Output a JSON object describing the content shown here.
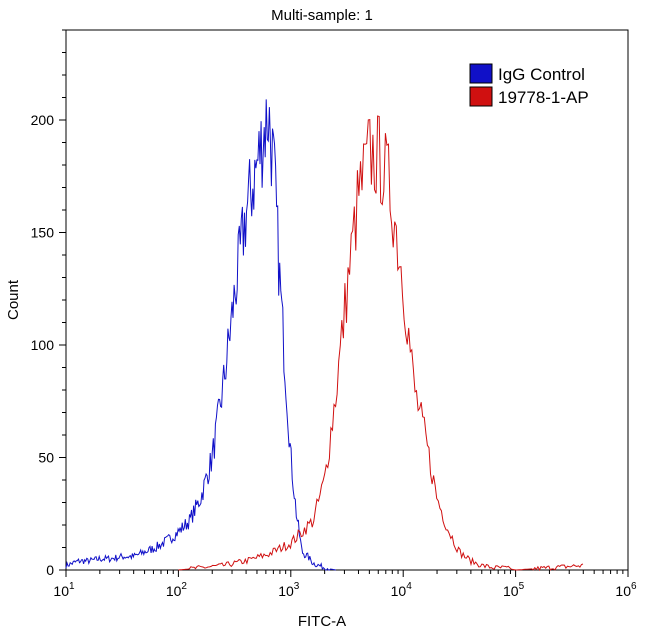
{
  "chart_data": {
    "type": "line",
    "title": "Multi-sample: 1",
    "xlabel": "FITC-A",
    "ylabel": "Count",
    "x_scale": "log",
    "xlim": [
      10,
      1000000
    ],
    "ylim": [
      0,
      240
    ],
    "y_ticks": [
      "0",
      "50",
      "100",
      "150",
      "200"
    ],
    "x_ticks": [
      {
        "base": "10",
        "exp": "1"
      },
      {
        "base": "10",
        "exp": "2"
      },
      {
        "base": "10",
        "exp": "3"
      },
      {
        "base": "10",
        "exp": "4"
      },
      {
        "base": "10",
        "exp": "5"
      },
      {
        "base": "10",
        "exp": "6"
      }
    ],
    "legend_position": "top-right",
    "grid": false,
    "series": [
      {
        "name": "IgG Control",
        "color": "#1010c8",
        "x": [
          10,
          13,
          16,
          20,
          25,
          32,
          40,
          50,
          63,
          79,
          100,
          126,
          158,
          200,
          251,
          316,
          398,
          501,
          562,
          631,
          708,
          794,
          891,
          1000,
          1122,
          1259,
          1413,
          1585,
          1778,
          2000,
          2512
        ],
        "y": [
          2,
          4,
          4,
          5,
          5,
          6,
          6,
          8,
          10,
          13,
          17,
          22,
          32,
          50,
          82,
          122,
          158,
          180,
          192,
          203,
          178,
          130,
          90,
          50,
          25,
          8,
          6,
          3,
          2,
          1,
          0
        ]
      },
      {
        "name": "19778-1-AP",
        "color": "#d01010",
        "x": [
          100,
          158,
          251,
          398,
          631,
          1000,
          1585,
          2000,
          2512,
          3162,
          3981,
          5012,
          6310,
          7079,
          7943,
          10000,
          12589,
          15849,
          19953,
          25119,
          31623,
          39811,
          50119,
          63096,
          79433,
          100000,
          398107
        ],
        "y": [
          0,
          1,
          2,
          4,
          7,
          12,
          22,
          40,
          78,
          125,
          165,
          185,
          182,
          175,
          165,
          128,
          80,
          58,
          32,
          18,
          8,
          4,
          2,
          1,
          1,
          0,
          2
        ]
      }
    ]
  }
}
